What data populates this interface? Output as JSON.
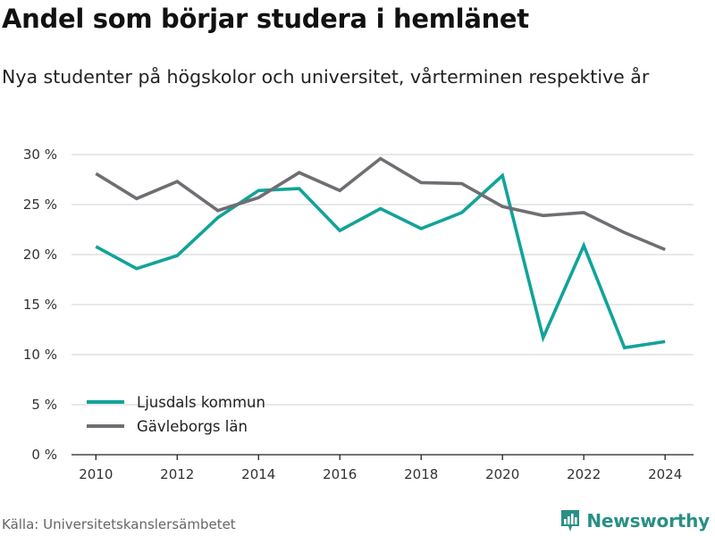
{
  "header": {
    "title": "Andel som börjar studera i hemlänet",
    "subtitle": "Nya studenter på högskolor och universitet, vårterminen respektive år"
  },
  "footer": {
    "source": "Källa: Universitetskanslersämbetet",
    "brand": "Newsworthy",
    "brand_icon": "bar-chart-logo-icon",
    "brand_color": "#2a8f86"
  },
  "chart_data": {
    "type": "line",
    "x": [
      2010,
      2011,
      2012,
      2013,
      2014,
      2015,
      2016,
      2017,
      2018,
      2019,
      2020,
      2021,
      2022,
      2023,
      2024
    ],
    "xticks": [
      2010,
      2012,
      2014,
      2016,
      2018,
      2020,
      2022,
      2024
    ],
    "xtick_labels": [
      "2010",
      "2012",
      "2014",
      "2016",
      "2018",
      "2020",
      "2022",
      "2024"
    ],
    "xlim": [
      2009.4,
      2024.7
    ],
    "yticks": [
      0,
      5,
      10,
      15,
      20,
      25,
      30
    ],
    "ytick_labels": [
      "0 %",
      "5 %",
      "10 %",
      "15 %",
      "20 %",
      "25 %",
      "30 %"
    ],
    "ylim": [
      0,
      30
    ],
    "grid": true,
    "legend_position": "bottom-left",
    "series": [
      {
        "name": "Ljusdals kommun",
        "color": "#11a39a",
        "values": [
          20.8,
          18.6,
          19.9,
          23.7,
          26.4,
          26.6,
          22.4,
          24.6,
          22.6,
          24.2,
          27.9,
          11.7,
          20.9,
          10.7,
          11.3
        ]
      },
      {
        "name": "Gävleborgs län",
        "color": "#6e6e73",
        "values": [
          28.1,
          25.6,
          27.3,
          24.4,
          25.7,
          28.2,
          26.4,
          29.6,
          27.2,
          27.1,
          24.8,
          23.9,
          24.2,
          22.2,
          20.5
        ]
      }
    ]
  }
}
